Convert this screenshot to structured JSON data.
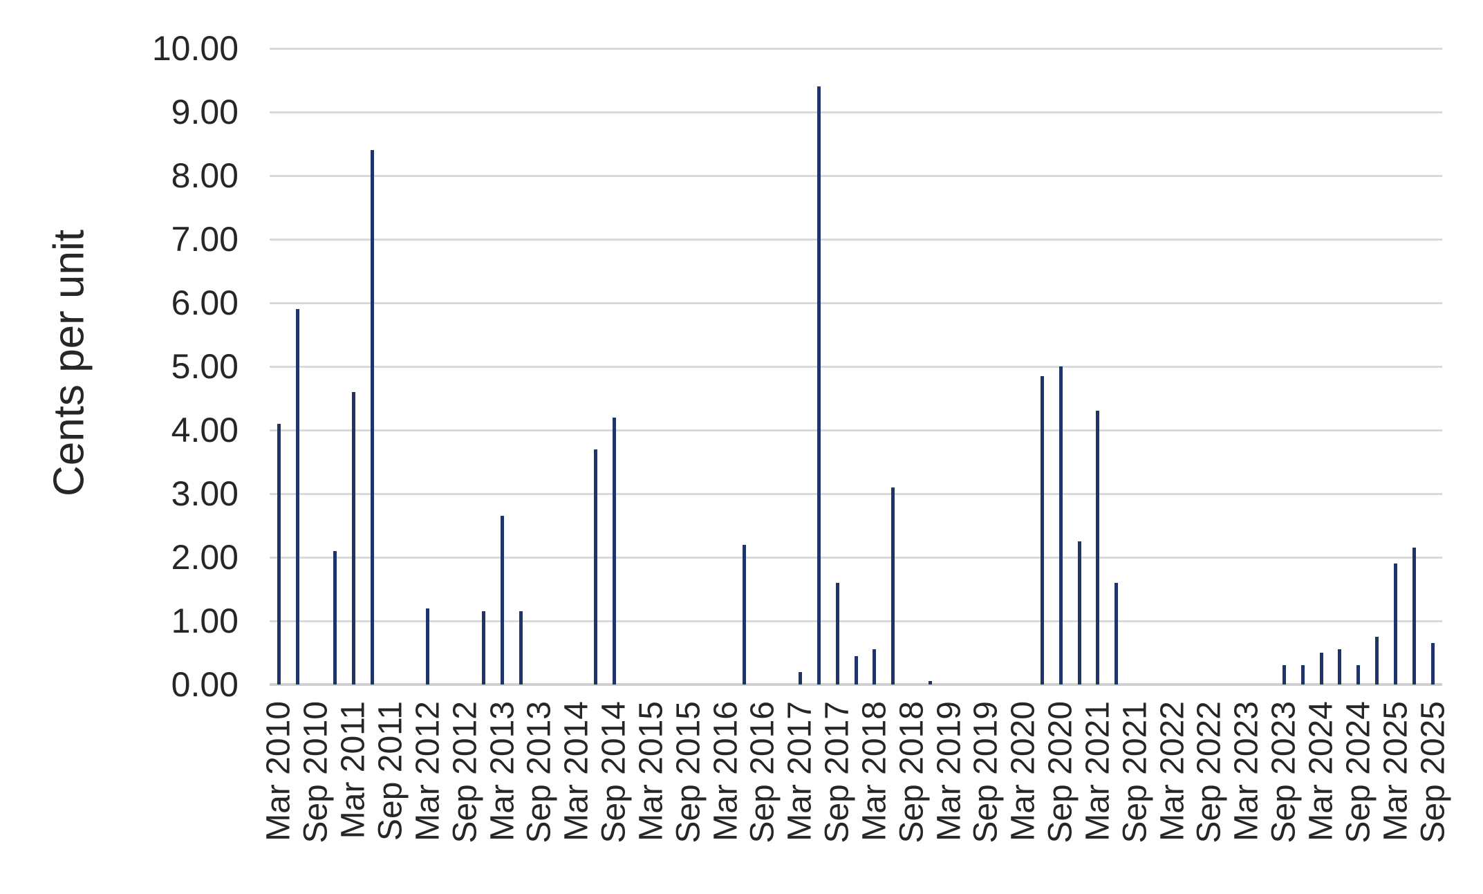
{
  "chart_data": {
    "type": "bar",
    "title": "",
    "ylabel": "Cents per unit",
    "xlabel": "",
    "ylim": [
      0,
      10
    ],
    "ytick_step": 1.0,
    "ytick_labels": [
      "0.00",
      "1.00",
      "2.00",
      "3.00",
      "4.00",
      "5.00",
      "6.00",
      "7.00",
      "8.00",
      "9.00",
      "10.00"
    ],
    "grid": true,
    "legend": null,
    "bar_color": "#1f3469",
    "gridline_color": "#d9d9d9",
    "text_color": "#262626",
    "categories": [
      "Mar 2010",
      "Jun 2010",
      "Sep 2010",
      "Dec 2010",
      "Mar 2011",
      "Jun 2011",
      "Sep 2011",
      "Dec 2011",
      "Mar 2012",
      "Jun 2012",
      "Sep 2012",
      "Dec 2012",
      "Mar 2013",
      "Jun 2013",
      "Sep 2013",
      "Dec 2013",
      "Mar 2014",
      "Jun 2014",
      "Sep 2014",
      "Dec 2014",
      "Mar 2015",
      "Jun 2015",
      "Sep 2015",
      "Dec 2015",
      "Mar 2016",
      "Jun 2016",
      "Sep 2016",
      "Dec 2016",
      "Mar 2017",
      "Jun 2017",
      "Sep 2017",
      "Dec 2017",
      "Mar 2018",
      "Jun 2018",
      "Sep 2018",
      "Dec 2018",
      "Mar 2019",
      "Jun 2019",
      "Sep 2019",
      "Dec 2019",
      "Mar 2020",
      "Jun 2020",
      "Sep 2020",
      "Dec 2020",
      "Mar 2021",
      "Jun 2021",
      "Sep 2021",
      "Dec 2021",
      "Mar 2022",
      "Jun 2022",
      "Sep 2022",
      "Dec 2022",
      "Mar 2023",
      "Jun 2023",
      "Sep 2023",
      "Dec 2023",
      "Mar 2024",
      "Jun 2024",
      "Sep 2024",
      "Dec 2024",
      "Mar 2025",
      "Jun 2025",
      "Sep 2025"
    ],
    "values": [
      4.1,
      5.9,
      0,
      2.1,
      4.6,
      8.4,
      0,
      0,
      1.2,
      0,
      0,
      1.15,
      2.65,
      1.15,
      0,
      0,
      0,
      3.7,
      4.2,
      0,
      0,
      0,
      0,
      0,
      0,
      2.2,
      0,
      0,
      0.2,
      9.4,
      1.6,
      0.45,
      0.55,
      3.1,
      0,
      0.05,
      0,
      0,
      0,
      0,
      0,
      4.85,
      5.0,
      2.25,
      4.3,
      1.6,
      0,
      0,
      0,
      0,
      0,
      0,
      0,
      0,
      0.3,
      0.3,
      0.5,
      0.55,
      0.3,
      0.75,
      1.9,
      2.15,
      0.65
    ],
    "xtick_labels": [
      "Mar 2010",
      "Sep 2010",
      "Mar 2011",
      "Sep 2011",
      "Mar 2012",
      "Sep 2012",
      "Mar 2013",
      "Sep 2013",
      "Mar 2014",
      "Sep 2014",
      "Mar 2015",
      "Sep 2015",
      "Mar 2016",
      "Sep 2016",
      "Mar 2017",
      "Sep 2017",
      "Mar 2018",
      "Sep 2018",
      "Mar 2019",
      "Sep 2019",
      "Mar 2020",
      "Sep 2020",
      "Mar 2021",
      "Sep 2021",
      "Mar 2022",
      "Sep 2022",
      "Mar 2023",
      "Sep 2023",
      "Mar 2024",
      "Sep 2024",
      "Mar 2025",
      "Sep 2025"
    ],
    "xtick_every_n_categories": 2
  }
}
